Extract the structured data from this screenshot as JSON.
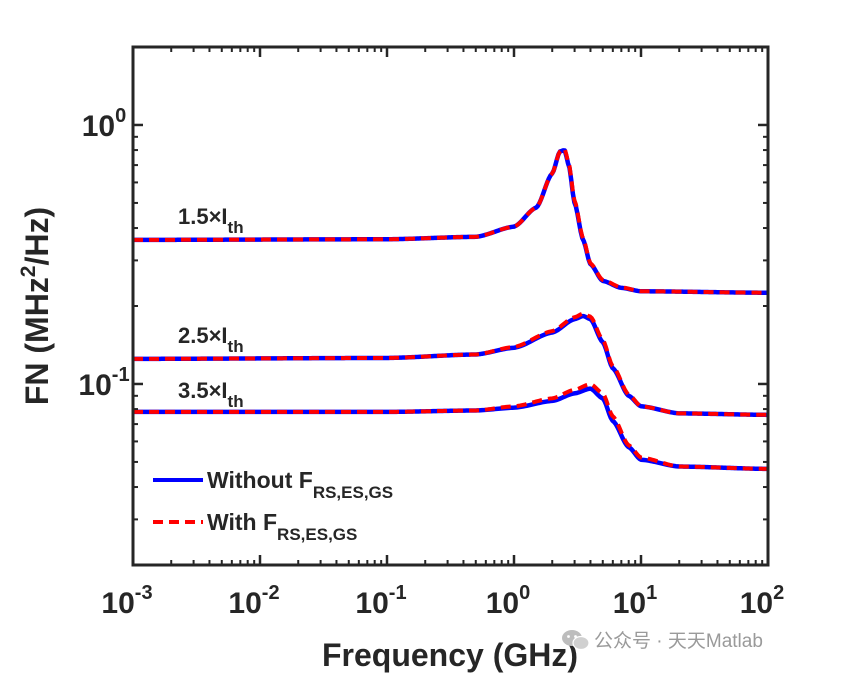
{
  "chart_data": {
    "type": "line",
    "xlabel": "Frequency (GHz)",
    "ylabel": "FN (MHz²/Hz)",
    "xscale": "log",
    "yscale": "log",
    "xlim": [
      0.001,
      100
    ],
    "ylim": [
      0.02,
      2
    ],
    "x_ticks": [
      {
        "value": 0.001,
        "base": "10",
        "exp": "-3"
      },
      {
        "value": 0.01,
        "base": "10",
        "exp": "-2"
      },
      {
        "value": 0.1,
        "base": "10",
        "exp": "-1"
      },
      {
        "value": 1,
        "base": "10",
        "exp": "0"
      },
      {
        "value": 10,
        "base": "10",
        "exp": "1"
      },
      {
        "value": 100,
        "base": "10",
        "exp": "2"
      }
    ],
    "y_ticks": [
      {
        "value": 0.1,
        "base": "10",
        "exp": "-1"
      },
      {
        "value": 1,
        "base": "10",
        "exp": "0"
      }
    ],
    "grid": false,
    "legend": {
      "placement": "bottom-left",
      "entries": [
        {
          "prefix": "Without F",
          "subscript": "RS,ES,GS",
          "color": "#0000ff",
          "style": "solid"
        },
        {
          "prefix": "With F",
          "subscript": "RS,ES,GS",
          "color": "#ff0000",
          "style": "dashed"
        }
      ]
    },
    "annotations": [
      {
        "prefix": "1.5×I",
        "subscript": "th",
        "curve": 0
      },
      {
        "prefix": "2.5×I",
        "subscript": "th",
        "curve": 1
      },
      {
        "prefix": "3.5×I",
        "subscript": "th",
        "curve": 2
      }
    ],
    "curves": [
      {
        "label": "1.5×Ith",
        "series": [
          {
            "name": "Without FRS,ES,GS",
            "color": "#0000ff",
            "x": [
              0.001,
              0.1,
              0.5,
              1.0,
              1.5,
              2.0,
              2.3,
              2.5,
              2.7,
              3.0,
              3.5,
              4.0,
              5.0,
              7.0,
              10,
              100
            ],
            "y": [
              0.36,
              0.362,
              0.37,
              0.405,
              0.48,
              0.65,
              0.79,
              0.8,
              0.7,
              0.5,
              0.36,
              0.29,
              0.25,
              0.235,
              0.228,
              0.225
            ]
          },
          {
            "name": "With FRS,ES,GS",
            "color": "#ff0000",
            "x": [
              0.001,
              0.1,
              0.5,
              1.0,
              1.5,
              2.0,
              2.3,
              2.5,
              2.7,
              3.0,
              3.5,
              4.0,
              5.0,
              7.0,
              10,
              100
            ],
            "y": [
              0.36,
              0.362,
              0.37,
              0.405,
              0.48,
              0.65,
              0.79,
              0.81,
              0.71,
              0.51,
              0.365,
              0.292,
              0.252,
              0.236,
              0.228,
              0.225
            ]
          }
        ]
      },
      {
        "label": "2.5×Ith",
        "series": [
          {
            "name": "Without FRS,ES,GS",
            "color": "#0000ff",
            "x": [
              0.001,
              0.1,
              0.5,
              1.0,
              2.0,
              3.0,
              3.5,
              4.0,
              5.0,
              6.0,
              8.0,
              10,
              20,
              100
            ],
            "y": [
              0.125,
              0.126,
              0.13,
              0.138,
              0.158,
              0.178,
              0.183,
              0.178,
              0.145,
              0.115,
              0.09,
              0.082,
              0.077,
              0.076
            ]
          },
          {
            "name": "With FRS,ES,GS",
            "color": "#ff0000",
            "x": [
              0.001,
              0.1,
              0.5,
              1.0,
              2.0,
              3.0,
              3.5,
              4.0,
              5.0,
              6.0,
              8.0,
              10,
              20,
              100
            ],
            "y": [
              0.125,
              0.126,
              0.13,
              0.139,
              0.16,
              0.181,
              0.187,
              0.182,
              0.148,
              0.117,
              0.091,
              0.082,
              0.077,
              0.076
            ]
          }
        ]
      },
      {
        "label": "3.5×Ith",
        "series": [
          {
            "name": "Without FRS,ES,GS",
            "color": "#0000ff",
            "x": [
              0.001,
              0.1,
              0.5,
              1.0,
              2.0,
              3.0,
              4.0,
              5.0,
              6.0,
              8.0,
              10,
              20,
              100
            ],
            "y": [
              0.078,
              0.078,
              0.079,
              0.081,
              0.086,
              0.092,
              0.096,
              0.088,
              0.072,
              0.057,
              0.051,
              0.048,
              0.047
            ]
          },
          {
            "name": "With FRS,ES,GS",
            "color": "#ff0000",
            "x": [
              0.001,
              0.1,
              0.5,
              1.0,
              2.0,
              3.0,
              4.0,
              5.0,
              6.0,
              8.0,
              10,
              20,
              100
            ],
            "y": [
              0.078,
              0.078,
              0.079,
              0.082,
              0.088,
              0.095,
              0.1,
              0.092,
              0.075,
              0.058,
              0.052,
              0.048,
              0.047
            ]
          }
        ]
      }
    ]
  },
  "watermark": {
    "text": "公众号 · 天天Matlab",
    "icon": "wechat-icon"
  }
}
